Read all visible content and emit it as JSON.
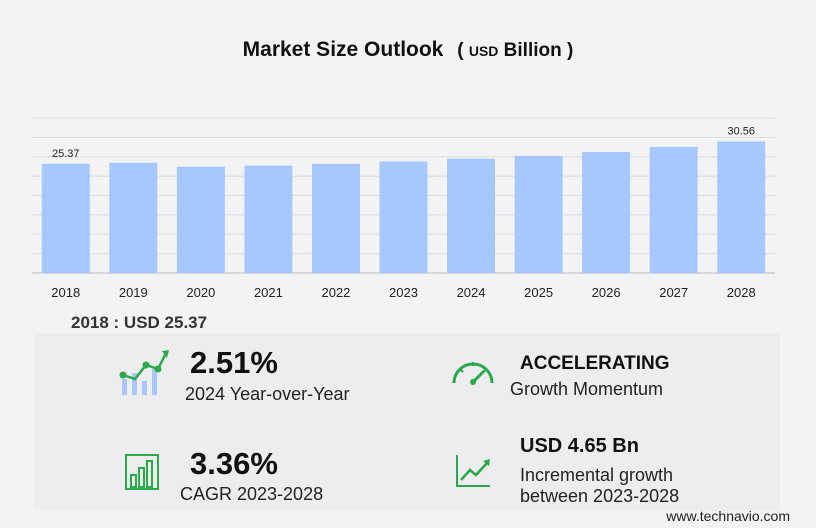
{
  "header": {
    "title": "Market Size Outlook",
    "unit_open": "(",
    "unit_currency": "USD",
    "unit_scale": "Billion",
    "unit_close": ")"
  },
  "chart_data": {
    "type": "bar",
    "categories": [
      "2018",
      "2019",
      "2020",
      "2021",
      "2022",
      "2023",
      "2024",
      "2025",
      "2026",
      "2027",
      "2028"
    ],
    "values": [
      25.37,
      25.6,
      24.7,
      24.95,
      25.35,
      25.9,
      26.55,
      27.2,
      28.1,
      29.3,
      30.56
    ],
    "data_labels": [
      {
        "index": 0,
        "text": "25.37"
      },
      {
        "index": 10,
        "text": "30.56"
      }
    ],
    "ylim": [
      0,
      36
    ],
    "grid": true,
    "bar_color": "#a6c8ff"
  },
  "base": {
    "text": "2018 : USD  25.37"
  },
  "stats": {
    "yoy": {
      "value": "2.51%",
      "label": "2024 Year-over-Year",
      "icon": "growth-chart-icon"
    },
    "momentum": {
      "value": "ACCELERATING",
      "label": "Growth Momentum",
      "icon": "speedometer-icon"
    },
    "cagr": {
      "value": "3.36%",
      "label": "CAGR 2023-2028",
      "icon": "bar-chart-icon"
    },
    "incremental": {
      "currency": "USD",
      "value": "4.65 Bn",
      "label_line1": "Incremental growth",
      "label_line2": "between 2023-2028",
      "icon": "trend-line-icon"
    }
  },
  "colors": {
    "accent_green": "#2aa84a",
    "bar": "#a6c8ff",
    "grid": "#dcdce0"
  },
  "footer": {
    "credit": "www.technavio.com"
  }
}
